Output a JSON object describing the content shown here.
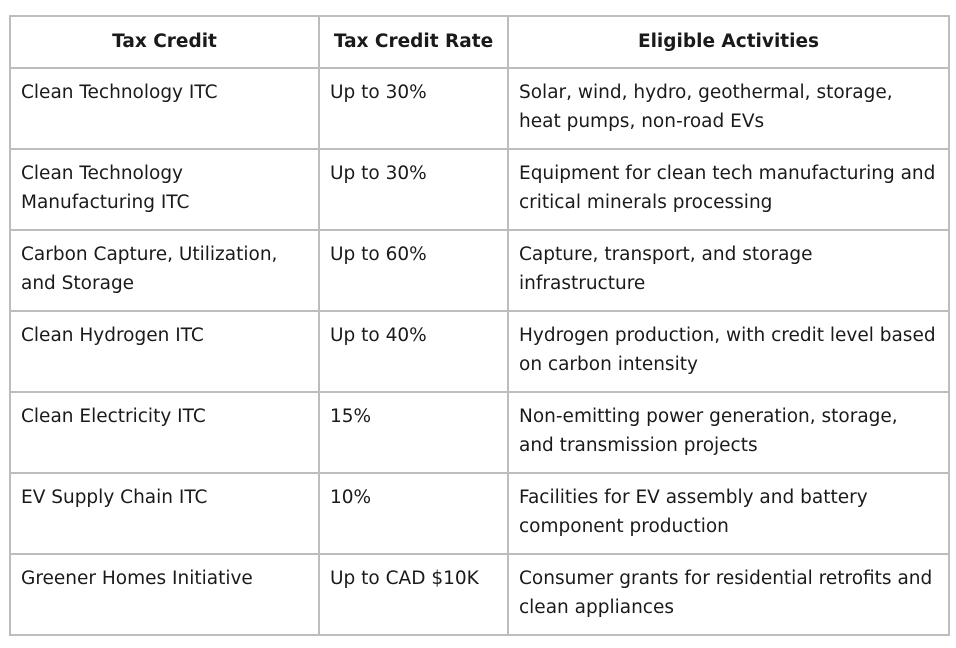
{
  "table": {
    "headers": [
      "Tax Credit",
      "Tax Credit Rate",
      "Eligible Activities"
    ],
    "rows": [
      {
        "credit": "Clean Technology ITC",
        "rate": "Up to 30%",
        "activities": "Solar, wind, hydro, geothermal, storage, heat pumps, non-road EVs"
      },
      {
        "credit": "Clean Technology Manufacturing ITC",
        "rate": "Up to 30%",
        "activities": "Equipment for clean tech manufacturing and critical minerals processing"
      },
      {
        "credit": "Carbon Capture, Utilization, and Storage",
        "rate": "Up to 60%",
        "activities": "Capture, transport, and storage infrastructure"
      },
      {
        "credit": "Clean Hydrogen ITC",
        "rate": "Up to 40%",
        "activities": "Hydrogen production, with credit level based on carbon intensity"
      },
      {
        "credit": "Clean Electricity ITC",
        "rate": "15%",
        "activities": "Non-emitting power generation, storage, and transmission projects"
      },
      {
        "credit": "EV Supply Chain ITC",
        "rate": "10%",
        "activities": "Facilities for EV assembly and battery component production"
      },
      {
        "credit": "Greener Homes Initiative",
        "rate": "Up to CAD $10K",
        "activities": "Consumer grants for residential retrofits and clean appliances"
      }
    ]
  }
}
